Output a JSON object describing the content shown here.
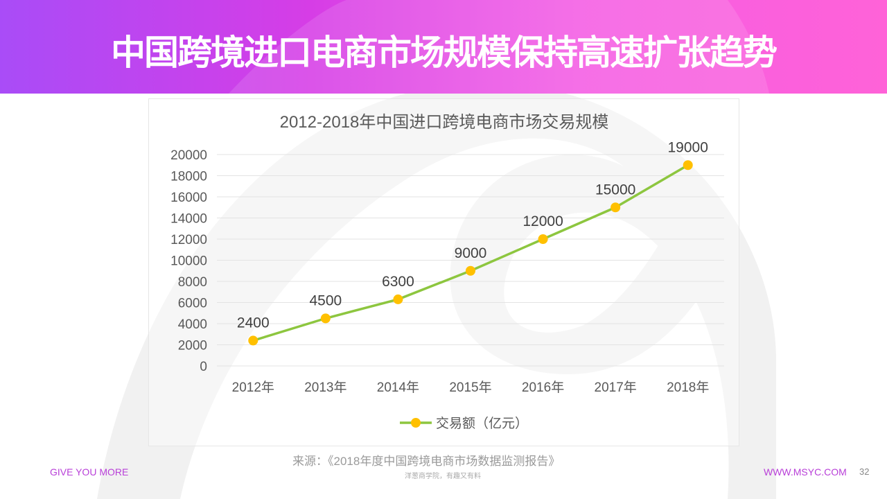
{
  "header": {
    "title": "中国跨境进口电商市场规模保持高速扩张趋势"
  },
  "chart_data": {
    "type": "line",
    "title": "2012-2018年中国进口跨境电商市场交易规模",
    "categories": [
      "2012年",
      "2013年",
      "2014年",
      "2015年",
      "2016年",
      "2017年",
      "2018年"
    ],
    "series": [
      {
        "name": "交易额（亿元）",
        "values": [
          2400,
          4500,
          6300,
          9000,
          12000,
          15000,
          19000
        ],
        "color": "#8dc63f",
        "marker_color": "#ffc000"
      }
    ],
    "ylim": [
      0,
      20000
    ],
    "yticks": [
      0,
      2000,
      4000,
      6000,
      8000,
      10000,
      12000,
      14000,
      16000,
      18000,
      20000
    ],
    "grid": true,
    "legend": "bottom"
  },
  "source": "来源：《2018年度中国跨境电商市场数据监测报告》",
  "footer": {
    "left": "GIVE YOU MORE",
    "center": "洋葱商学院，有趣又有料",
    "right": "WWW.MSYC.COM",
    "page": "32"
  },
  "colors": {
    "accent": "#b83fd8"
  }
}
